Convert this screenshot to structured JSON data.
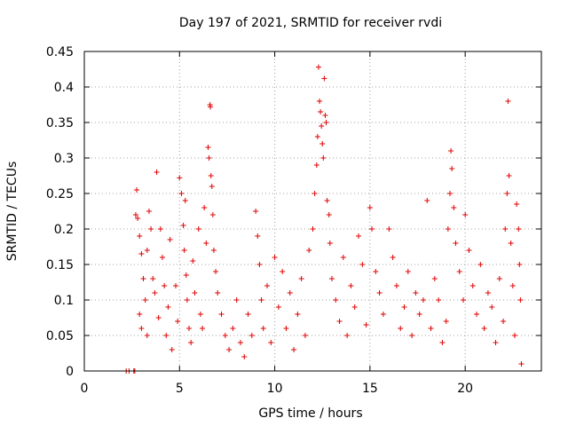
{
  "chart_data": {
    "type": "scatter",
    "title": "Day 197 of 2021, SRMTID for receiver rvdi",
    "xlabel": "GPS time / hours",
    "ylabel": "SRMTID / TECUs",
    "xlim": [
      0,
      24
    ],
    "ylim": [
      0,
      0.45
    ],
    "xticks": [
      "0",
      "5",
      "10",
      "15",
      "20"
    ],
    "xtick_values": [
      0,
      5,
      10,
      15,
      20
    ],
    "yticks": [
      "0",
      "0.05",
      "0.1",
      "0.15",
      "0.2",
      "0.25",
      "0.3",
      "0.35",
      "0.4",
      "0.45"
    ],
    "ytick_values": [
      0,
      0.05,
      0.1,
      0.15,
      0.2,
      0.25,
      0.3,
      0.35,
      0.4,
      0.45
    ],
    "grid": true,
    "marker": "+",
    "color": "#e00000",
    "series": [
      {
        "points": [
          [
            2.2,
            0.0
          ],
          [
            2.35,
            0.0
          ],
          [
            2.6,
            0.0
          ],
          [
            2.65,
            0.0
          ],
          [
            2.75,
            0.255
          ],
          [
            2.7,
            0.22
          ],
          [
            2.8,
            0.215
          ],
          [
            2.9,
            0.19
          ],
          [
            3.0,
            0.165
          ],
          [
            3.1,
            0.13
          ],
          [
            2.9,
            0.08
          ],
          [
            3.0,
            0.06
          ],
          [
            3.2,
            0.1
          ],
          [
            3.3,
            0.05
          ],
          [
            3.4,
            0.225
          ],
          [
            3.5,
            0.2
          ],
          [
            3.3,
            0.17
          ],
          [
            3.6,
            0.13
          ],
          [
            3.8,
            0.28
          ],
          [
            3.7,
            0.11
          ],
          [
            3.9,
            0.075
          ],
          [
            4.0,
            0.2
          ],
          [
            4.1,
            0.16
          ],
          [
            4.2,
            0.12
          ],
          [
            4.3,
            0.05
          ],
          [
            4.5,
            0.185
          ],
          [
            4.4,
            0.09
          ],
          [
            4.6,
            0.03
          ],
          [
            4.8,
            0.12
          ],
          [
            4.9,
            0.07
          ],
          [
            5.0,
            0.272
          ],
          [
            5.1,
            0.25
          ],
          [
            5.2,
            0.205
          ],
          [
            5.3,
            0.24
          ],
          [
            5.25,
            0.17
          ],
          [
            5.35,
            0.135
          ],
          [
            5.4,
            0.1
          ],
          [
            5.5,
            0.06
          ],
          [
            5.6,
            0.04
          ],
          [
            5.7,
            0.155
          ],
          [
            5.8,
            0.11
          ],
          [
            6.0,
            0.2
          ],
          [
            6.1,
            0.08
          ],
          [
            6.2,
            0.06
          ],
          [
            6.3,
            0.23
          ],
          [
            6.4,
            0.18
          ],
          [
            6.5,
            0.315
          ],
          [
            6.55,
            0.3
          ],
          [
            6.6,
            0.375
          ],
          [
            6.62,
            0.372
          ],
          [
            6.65,
            0.275
          ],
          [
            6.7,
            0.26
          ],
          [
            6.75,
            0.22
          ],
          [
            6.8,
            0.17
          ],
          [
            6.9,
            0.14
          ],
          [
            7.0,
            0.11
          ],
          [
            7.2,
            0.08
          ],
          [
            7.4,
            0.05
          ],
          [
            7.6,
            0.03
          ],
          [
            7.8,
            0.06
          ],
          [
            8.0,
            0.1
          ],
          [
            8.2,
            0.04
          ],
          [
            8.4,
            0.02
          ],
          [
            8.6,
            0.08
          ],
          [
            8.8,
            0.05
          ],
          [
            9.0,
            0.225
          ],
          [
            9.1,
            0.19
          ],
          [
            9.2,
            0.15
          ],
          [
            9.3,
            0.1
          ],
          [
            9.4,
            0.06
          ],
          [
            9.6,
            0.12
          ],
          [
            9.8,
            0.04
          ],
          [
            10.0,
            0.16
          ],
          [
            10.2,
            0.09
          ],
          [
            10.4,
            0.14
          ],
          [
            10.6,
            0.06
          ],
          [
            10.8,
            0.11
          ],
          [
            11.0,
            0.03
          ],
          [
            11.2,
            0.08
          ],
          [
            11.4,
            0.13
          ],
          [
            11.6,
            0.05
          ],
          [
            11.8,
            0.17
          ],
          [
            12.0,
            0.2
          ],
          [
            12.1,
            0.25
          ],
          [
            12.2,
            0.29
          ],
          [
            12.25,
            0.33
          ],
          [
            12.3,
            0.428
          ],
          [
            12.35,
            0.38
          ],
          [
            12.4,
            0.365
          ],
          [
            12.45,
            0.345
          ],
          [
            12.5,
            0.32
          ],
          [
            12.55,
            0.3
          ],
          [
            12.6,
            0.412
          ],
          [
            12.65,
            0.36
          ],
          [
            12.7,
            0.35
          ],
          [
            12.75,
            0.24
          ],
          [
            12.85,
            0.22
          ],
          [
            12.9,
            0.18
          ],
          [
            13.0,
            0.13
          ],
          [
            13.2,
            0.1
          ],
          [
            13.4,
            0.07
          ],
          [
            13.6,
            0.16
          ],
          [
            13.8,
            0.05
          ],
          [
            14.0,
            0.12
          ],
          [
            14.2,
            0.09
          ],
          [
            14.4,
            0.19
          ],
          [
            14.6,
            0.15
          ],
          [
            14.8,
            0.065
          ],
          [
            15.0,
            0.23
          ],
          [
            15.1,
            0.2
          ],
          [
            15.3,
            0.14
          ],
          [
            15.5,
            0.11
          ],
          [
            15.7,
            0.08
          ],
          [
            16.0,
            0.2
          ],
          [
            16.2,
            0.16
          ],
          [
            16.4,
            0.12
          ],
          [
            16.6,
            0.06
          ],
          [
            16.8,
            0.09
          ],
          [
            17.0,
            0.14
          ],
          [
            17.2,
            0.05
          ],
          [
            17.4,
            0.11
          ],
          [
            17.6,
            0.08
          ],
          [
            17.8,
            0.1
          ],
          [
            18.0,
            0.24
          ],
          [
            18.2,
            0.06
          ],
          [
            18.4,
            0.13
          ],
          [
            18.6,
            0.1
          ],
          [
            18.8,
            0.04
          ],
          [
            19.0,
            0.07
          ],
          [
            19.1,
            0.2
          ],
          [
            19.2,
            0.25
          ],
          [
            19.25,
            0.31
          ],
          [
            19.3,
            0.285
          ],
          [
            19.4,
            0.23
          ],
          [
            19.5,
            0.18
          ],
          [
            19.7,
            0.14
          ],
          [
            19.9,
            0.1
          ],
          [
            20.0,
            0.22
          ],
          [
            20.2,
            0.17
          ],
          [
            20.4,
            0.12
          ],
          [
            20.6,
            0.08
          ],
          [
            20.8,
            0.15
          ],
          [
            21.0,
            0.06
          ],
          [
            21.2,
            0.11
          ],
          [
            21.4,
            0.09
          ],
          [
            21.6,
            0.04
          ],
          [
            21.8,
            0.13
          ],
          [
            22.0,
            0.07
          ],
          [
            22.1,
            0.2
          ],
          [
            22.2,
            0.25
          ],
          [
            22.25,
            0.38
          ],
          [
            22.3,
            0.275
          ],
          [
            22.4,
            0.18
          ],
          [
            22.5,
            0.12
          ],
          [
            22.6,
            0.05
          ],
          [
            22.7,
            0.235
          ],
          [
            22.8,
            0.2
          ],
          [
            22.85,
            0.15
          ],
          [
            22.9,
            0.1
          ],
          [
            22.95,
            0.01
          ]
        ]
      }
    ]
  }
}
